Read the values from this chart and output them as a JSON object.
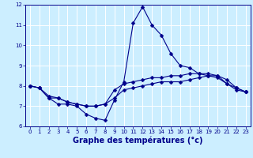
{
  "title": "",
  "xlabel": "Graphe des températures (°c)",
  "ylabel": "",
  "xlim": [
    -0.5,
    23.5
  ],
  "ylim": [
    6,
    12
  ],
  "yticks": [
    6,
    7,
    8,
    9,
    10,
    11,
    12
  ],
  "xticks": [
    0,
    1,
    2,
    3,
    4,
    5,
    6,
    7,
    8,
    9,
    10,
    11,
    12,
    13,
    14,
    15,
    16,
    17,
    18,
    19,
    20,
    21,
    22,
    23
  ],
  "line_color": "#00008B",
  "marker_color": "#00008B",
  "bg_color": "#cceeff",
  "grid_color": "#ffffff",
  "line1_x": [
    0,
    1,
    2,
    3,
    4,
    5,
    6,
    7,
    8,
    9,
    10,
    11,
    12,
    13,
    14,
    15,
    16,
    17,
    18,
    19,
    20,
    21,
    22,
    23
  ],
  "line1_y": [
    8.0,
    7.9,
    7.4,
    7.1,
    7.1,
    7.0,
    6.6,
    6.4,
    6.3,
    7.3,
    8.2,
    11.1,
    11.9,
    11.0,
    10.5,
    9.6,
    9.0,
    8.9,
    8.6,
    8.5,
    8.4,
    8.1,
    7.9,
    7.7
  ],
  "line2_x": [
    0,
    1,
    2,
    3,
    4,
    5,
    6,
    7,
    8,
    9,
    10,
    11,
    12,
    13,
    14,
    15,
    16,
    17,
    18,
    19,
    20,
    21,
    22,
    23
  ],
  "line2_y": [
    8.0,
    7.9,
    7.5,
    7.4,
    7.2,
    7.1,
    7.0,
    7.0,
    7.1,
    7.8,
    8.1,
    8.2,
    8.3,
    8.4,
    8.4,
    8.5,
    8.5,
    8.6,
    8.6,
    8.6,
    8.5,
    8.3,
    7.9,
    7.7
  ],
  "line3_x": [
    0,
    1,
    2,
    3,
    4,
    5,
    6,
    7,
    8,
    9,
    10,
    11,
    12,
    13,
    14,
    15,
    16,
    17,
    18,
    19,
    20,
    21,
    22,
    23
  ],
  "line3_y": [
    8.0,
    7.9,
    7.4,
    7.4,
    7.2,
    7.1,
    7.0,
    7.0,
    7.1,
    7.4,
    7.8,
    7.9,
    8.0,
    8.1,
    8.2,
    8.2,
    8.2,
    8.3,
    8.4,
    8.5,
    8.5,
    8.1,
    7.8,
    7.7
  ],
  "marker_size": 2.5,
  "linewidth": 0.8,
  "tick_fontsize": 5.0,
  "xlabel_fontsize": 7.0,
  "xlabel_fontweight": "bold"
}
